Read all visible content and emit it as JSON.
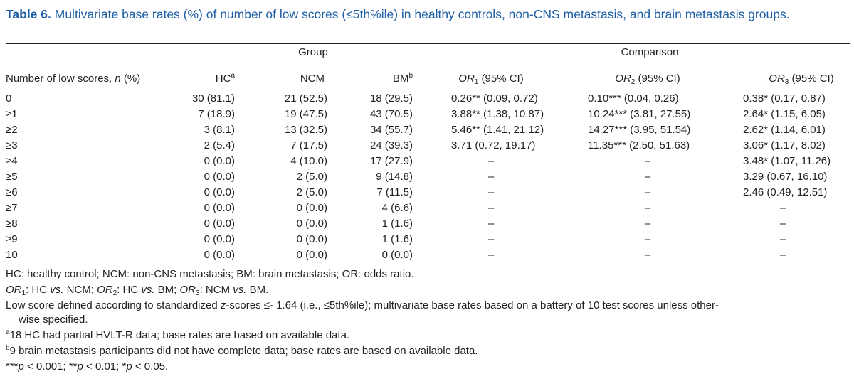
{
  "caption": {
    "label": "Table 6.",
    "text": "Multivariate base rates (%) of number of low scores (≤5th%ile) in healthy controls, non-CNS metastasis, and brain metastasis groups."
  },
  "headers": {
    "group": "Group",
    "comparison": "Comparison",
    "row_label_pre": "Number of low scores, ",
    "row_label_n": "n",
    "row_label_post": " (%)",
    "hc": "HC",
    "hc_sup": "a",
    "ncm": "NCM",
    "bm": "BM",
    "bm_sup": "b",
    "or_prefix": "OR",
    "or1_sub": "1",
    "or2_sub": "2",
    "or3_sub": "3",
    "ci": " (95% CI)"
  },
  "rows": [
    {
      "n": "0",
      "hc": "30 (81.1)",
      "ncm": "21 (52.5)",
      "bm": "18 (29.5)",
      "or1": "0.26** (0.09, 0.72)",
      "or2": "0.10*** (0.04, 0.26)",
      "or3": "0.38* (0.17, 0.87)"
    },
    {
      "n": "≥1",
      "hc": "7 (18.9)",
      "ncm": "19 (47.5)",
      "bm": "43 (70.5)",
      "or1": "3.88** (1.38, 10.87)",
      "or2": "10.24*** (3.81, 27.55)",
      "or3": "2.64* (1.15, 6.05)"
    },
    {
      "n": "≥2",
      "hc": "3 (8.1)",
      "ncm": "13 (32.5)",
      "bm": "34 (55.7)",
      "or1": "5.46** (1.41, 21.12)",
      "or2": "14.27*** (3.95, 51.54)",
      "or3": "2.62* (1.14, 6.01)"
    },
    {
      "n": "≥3",
      "hc": "2 (5.4)",
      "ncm": "7 (17.5)",
      "bm": "24 (39.3)",
      "or1": "3.71 (0.72, 19.17)",
      "or2": "11.35*** (2.50, 51.63)",
      "or3": "3.06* (1.17, 8.02)"
    },
    {
      "n": "≥4",
      "hc": "0 (0.0)",
      "ncm": "4 (10.0)",
      "bm": "17 (27.9)",
      "or1": "–",
      "or2": "–",
      "or3": "3.48* (1.07, 11.26)"
    },
    {
      "n": "≥5",
      "hc": "0 (0.0)",
      "ncm": "2 (5.0)",
      "bm": "9 (14.8)",
      "or1": "–",
      "or2": "–",
      "or3": "3.29 (0.67, 16.10)"
    },
    {
      "n": "≥6",
      "hc": "0 (0.0)",
      "ncm": "2 (5.0)",
      "bm": "7 (11.5)",
      "or1": "–",
      "or2": "–",
      "or3": "2.46 (0.49, 12.51)"
    },
    {
      "n": "≥7",
      "hc": "0 (0.0)",
      "ncm": "0 (0.0)",
      "bm": "4 (6.6)",
      "or1": "–",
      "or2": "–",
      "or3": "–"
    },
    {
      "n": "≥8",
      "hc": "0 (0.0)",
      "ncm": "0 (0.0)",
      "bm": "1 (1.6)",
      "or1": "–",
      "or2": "–",
      "or3": "–"
    },
    {
      "n": "≥9",
      "hc": "0 (0.0)",
      "ncm": "0 (0.0)",
      "bm": "1 (1.6)",
      "or1": "–",
      "or2": "–",
      "or3": "–"
    },
    {
      "n": "10",
      "hc": "0 (0.0)",
      "ncm": "0 (0.0)",
      "bm": "0 (0.0)",
      "or1": "–",
      "or2": "–",
      "or3": "–"
    }
  ],
  "footnotes": {
    "abbrev": "HC: healthy control; NCM: non-CNS metastasis; BM: brain metastasis; OR: odds ratio.",
    "or_defs": [
      {
        "sub": "1",
        "text": ": HC ",
        "vs": "vs.",
        "rest": " NCM; "
      },
      {
        "sub": "2",
        "text": ": HC ",
        "vs": "vs.",
        "rest": " BM; "
      },
      {
        "sub": "3",
        "text": ": NCM ",
        "vs": "vs.",
        "rest": " BM."
      }
    ],
    "low_score_pre": "Low score defined according to standardized ",
    "low_score_z": "z",
    "low_score_post": "-scores ≤- 1.64 (i.e., ≤5th%ile); multivariate base rates based on a battery of 10 test scores unless other-",
    "low_score_cont": "wise specified.",
    "note_a_sup": "a",
    "note_a": "18 HC had partial HVLT-R data; base rates are based on available data.",
    "note_b_sup": "b",
    "note_b": "9 brain metastasis participants did not have complete data; base rates are based on available data.",
    "pvals": [
      {
        "stars": "***",
        "p": "p",
        "rest": " < 0.001; "
      },
      {
        "stars": "**",
        "p": "p",
        "rest": " < 0.01; "
      },
      {
        "stars": "*",
        "p": "p",
        "rest": " < 0.05."
      }
    ]
  }
}
